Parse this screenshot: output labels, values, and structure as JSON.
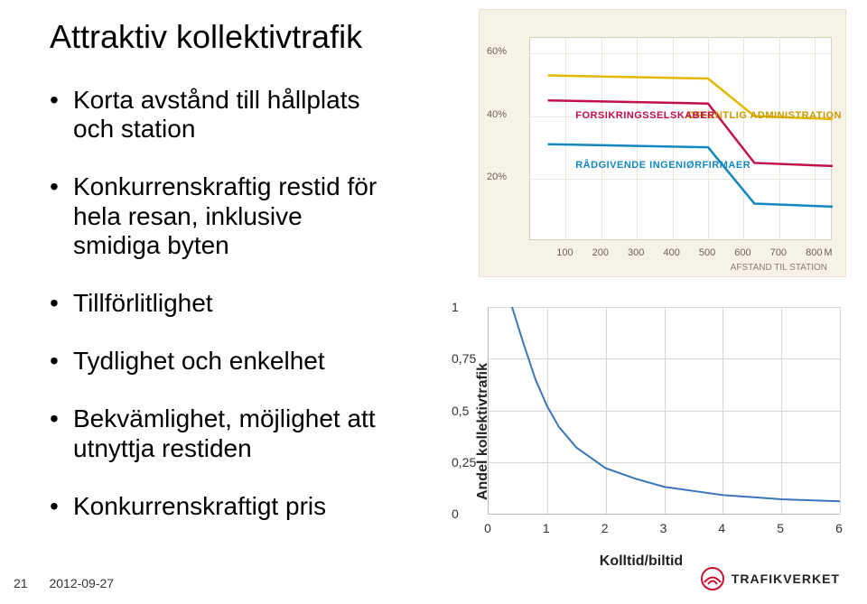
{
  "title": "Attraktiv kollektivtrafik",
  "bullets": [
    {
      "line1": "Korta avstånd till hållplats",
      "line2": "och station"
    },
    {
      "line1": "Konkurrenskraftig restid för",
      "line2": "hela resan, inklusive",
      "line3": "smidiga byten"
    },
    {
      "line1": "Tillförlitlighet"
    },
    {
      "line1": "Tydlighet  och enkelhet"
    },
    {
      "line1": "Bekvämlighet, möjlighet att",
      "line2": "utnyttja restiden"
    },
    {
      "line1": "Konkurrenskraftigt pris"
    }
  ],
  "footer": {
    "page": "21",
    "date": "2012-09-27"
  },
  "logo": {
    "text": "TRAFIKVERKET",
    "color": "#c8102e"
  },
  "img_chart": {
    "background_color": "#f7f2e7",
    "plot_bg": "#ffffff",
    "border_color": "#e8e2d3",
    "grid_color": "#ece7da",
    "text_color": "#6d6254",
    "y_ticks": [
      20,
      40,
      60
    ],
    "y_tick_labels": [
      "20%",
      "40%",
      "60%"
    ],
    "y_range": [
      0,
      65
    ],
    "x_ticks": [
      100,
      200,
      300,
      400,
      500,
      600,
      700,
      800
    ],
    "x_tick_labels": [
      "100",
      "200",
      "300",
      "400",
      "500",
      "600",
      "700",
      "800"
    ],
    "x_range": [
      0,
      850
    ],
    "x_extra_label": "M",
    "x_axis_title": "AFSTAND TIL STATION",
    "series": [
      {
        "name": "OFFENTLIG ADMINISTRATION",
        "color": "#e5b800",
        "label_color": "#c99b00",
        "points": [
          [
            50,
            53
          ],
          [
            500,
            52
          ],
          [
            630,
            40
          ],
          [
            850,
            39
          ]
        ],
        "label_pos": "right",
        "label_y": 40
      },
      {
        "name": "FORSIKRINGSSELSKABER",
        "color": "#c01048",
        "label_color": "#c01048",
        "points": [
          [
            50,
            45
          ],
          [
            500,
            44
          ],
          [
            630,
            25
          ],
          [
            850,
            24
          ]
        ],
        "label_pos": "inside",
        "label_x": 130,
        "label_y": 40
      },
      {
        "name": "RÅDGIVENDE INGENIØRFIRMAER",
        "color": "#1487bf",
        "label_color": "#1487bf",
        "points": [
          [
            50,
            31
          ],
          [
            500,
            30
          ],
          [
            630,
            12
          ],
          [
            850,
            11
          ]
        ],
        "label_pos": "inside",
        "label_x": 130,
        "label_y": 24
      }
    ],
    "line_width": 2.5
  },
  "line_chart": {
    "y_title": "Andel kollektivtrafik",
    "x_title": "Kolltid/biltid",
    "x_range": [
      0,
      6
    ],
    "y_range": [
      0,
      1
    ],
    "x_ticks": [
      0,
      1,
      2,
      3,
      4,
      5,
      6
    ],
    "y_ticks": [
      0,
      0.25,
      0.5,
      0.75,
      1
    ],
    "y_tick_labels": [
      "0",
      "0,25",
      "0,5",
      "0,75",
      "1"
    ],
    "grid_color": "#d8d8d8",
    "axis_color": "#b9b9b9",
    "line_color": "#3b74b9",
    "line_width": 2,
    "points": [
      [
        0.4,
        1.0
      ],
      [
        0.6,
        0.82
      ],
      [
        0.8,
        0.65
      ],
      [
        1.0,
        0.52
      ],
      [
        1.2,
        0.42
      ],
      [
        1.5,
        0.32
      ],
      [
        2.0,
        0.22
      ],
      [
        2.5,
        0.17
      ],
      [
        3.0,
        0.13
      ],
      [
        3.5,
        0.11
      ],
      [
        4.0,
        0.09
      ],
      [
        4.5,
        0.08
      ],
      [
        5.0,
        0.07
      ],
      [
        5.5,
        0.065
      ],
      [
        6.0,
        0.06
      ]
    ]
  }
}
